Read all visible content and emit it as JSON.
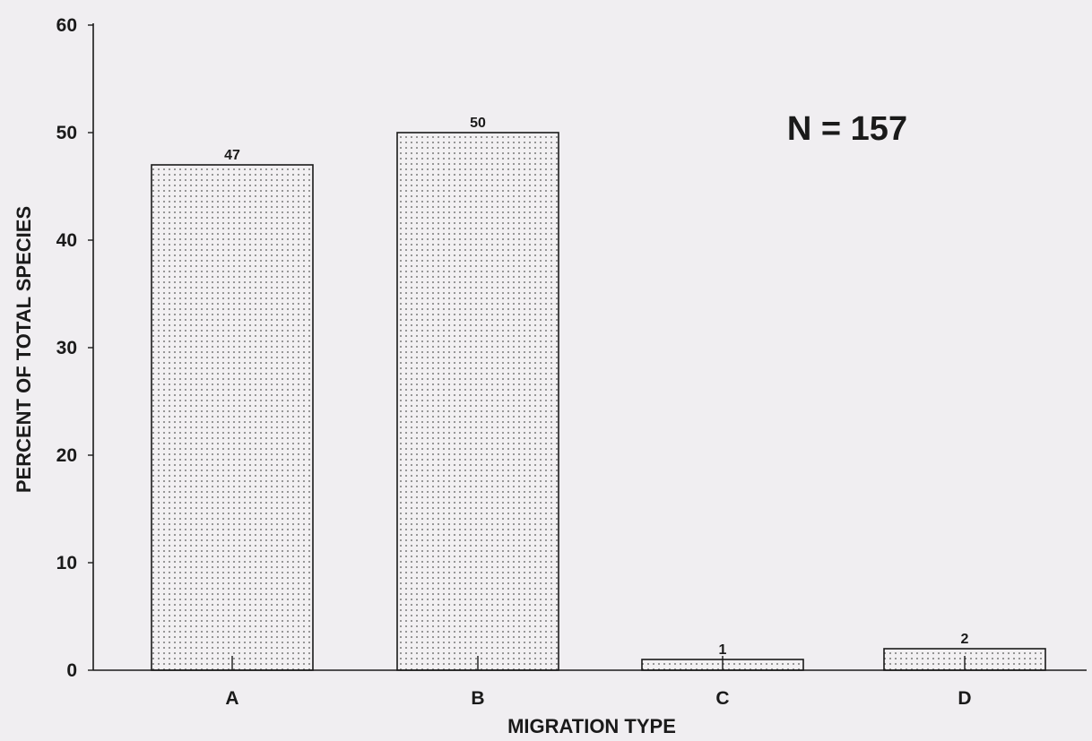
{
  "chart_data": {
    "type": "bar",
    "categories": [
      "A",
      "B",
      "C",
      "D"
    ],
    "values": [
      47,
      50,
      1,
      2
    ],
    "data_labels": [
      "47",
      "50",
      "1",
      "2"
    ],
    "title": "",
    "xlabel": "MIGRATION TYPE",
    "ylabel": "PERCENT OF TOTAL SPECIES",
    "ylim": [
      0,
      60
    ],
    "yticks": [
      0,
      10,
      20,
      30,
      40,
      50,
      60
    ],
    "grid": false,
    "annotation": "N = 157",
    "bar_pattern": "dotted",
    "colors": {
      "background": "#f0eef1",
      "bar_fill": "#f2f0f2",
      "bar_dots": "#555555",
      "axis": "#1a1a1a",
      "text": "#1a1a1a"
    }
  }
}
